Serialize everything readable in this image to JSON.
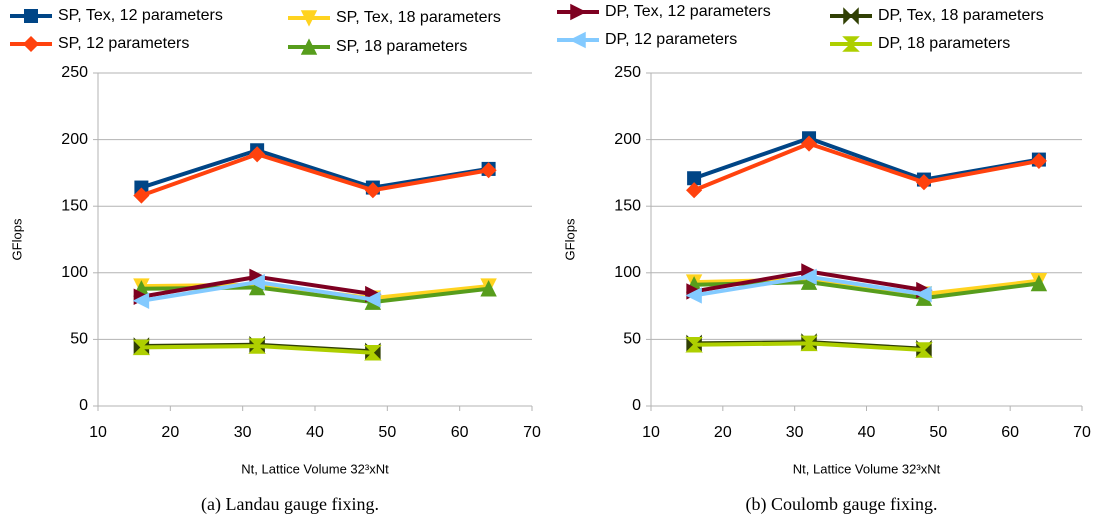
{
  "chart_data": [
    {
      "type": "line",
      "caption": "(a) Landau gauge fixing.",
      "xlabel": "Nt, Lattice Volume 32³xNt",
      "ylabel": "GFlops",
      "x": [
        16,
        32,
        48,
        64
      ],
      "xlim": [
        10,
        70
      ],
      "xticks": [
        10,
        20,
        30,
        40,
        50,
        60,
        70
      ],
      "ylim": [
        0,
        250
      ],
      "yticks": [
        0,
        50,
        100,
        150,
        200,
        250
      ],
      "grid": true,
      "series": [
        {
          "name": "SP, Tex, 12 parameters",
          "color": "#004586",
          "marker": "square",
          "values": [
            164,
            192,
            164,
            178
          ]
        },
        {
          "name": "SP, 12 parameters",
          "color": "#ff420e",
          "marker": "diamond",
          "values": [
            158,
            189,
            162,
            177
          ]
        },
        {
          "name": "SP, Tex, 18 parameters",
          "color": "#ffd320",
          "marker": "down",
          "values": [
            90,
            91,
            81,
            90
          ]
        },
        {
          "name": "SP, 18 parameters",
          "color": "#579d1c",
          "marker": "up",
          "values": [
            88,
            89,
            78,
            88
          ]
        },
        {
          "name": "DP, Tex, 12 parameters",
          "color": "#7e0021",
          "marker": "right",
          "values": [
            82,
            97,
            84,
            null
          ]
        },
        {
          "name": "DP, 12 parameters",
          "color": "#83caff",
          "marker": "left",
          "values": [
            79,
            93,
            80,
            null
          ]
        },
        {
          "name": "DP, Tex, 18 parameters",
          "color": "#314004",
          "marker": "bowtie",
          "values": [
            45,
            46,
            41,
            null
          ]
        },
        {
          "name": "DP, 18 parameters",
          "color": "#aecf00",
          "marker": "hourglass",
          "values": [
            44,
            45,
            40,
            null
          ]
        }
      ]
    },
    {
      "type": "line",
      "caption": "(b) Coulomb gauge fixing.",
      "xlabel": "Nt, Lattice Volume 32³xNt",
      "ylabel": "GFlops",
      "x": [
        16,
        32,
        48,
        64
      ],
      "xlim": [
        10,
        70
      ],
      "xticks": [
        10,
        20,
        30,
        40,
        50,
        60,
        70
      ],
      "ylim": [
        0,
        250
      ],
      "yticks": [
        0,
        50,
        100,
        150,
        200,
        250
      ],
      "grid": true,
      "series": [
        {
          "values": [
            171,
            201,
            170,
            185
          ]
        },
        {
          "values": [
            162,
            197,
            168,
            184
          ]
        },
        {
          "values": [
            93,
            95,
            84,
            94
          ]
        },
        {
          "values": [
            91,
            93,
            81,
            92
          ]
        },
        {
          "values": [
            86,
            101,
            87,
            null
          ]
        },
        {
          "values": [
            83,
            97,
            84,
            null
          ]
        },
        {
          "values": [
            47,
            48,
            43,
            null
          ]
        },
        {
          "values": [
            46,
            47,
            42,
            null
          ]
        }
      ]
    }
  ]
}
